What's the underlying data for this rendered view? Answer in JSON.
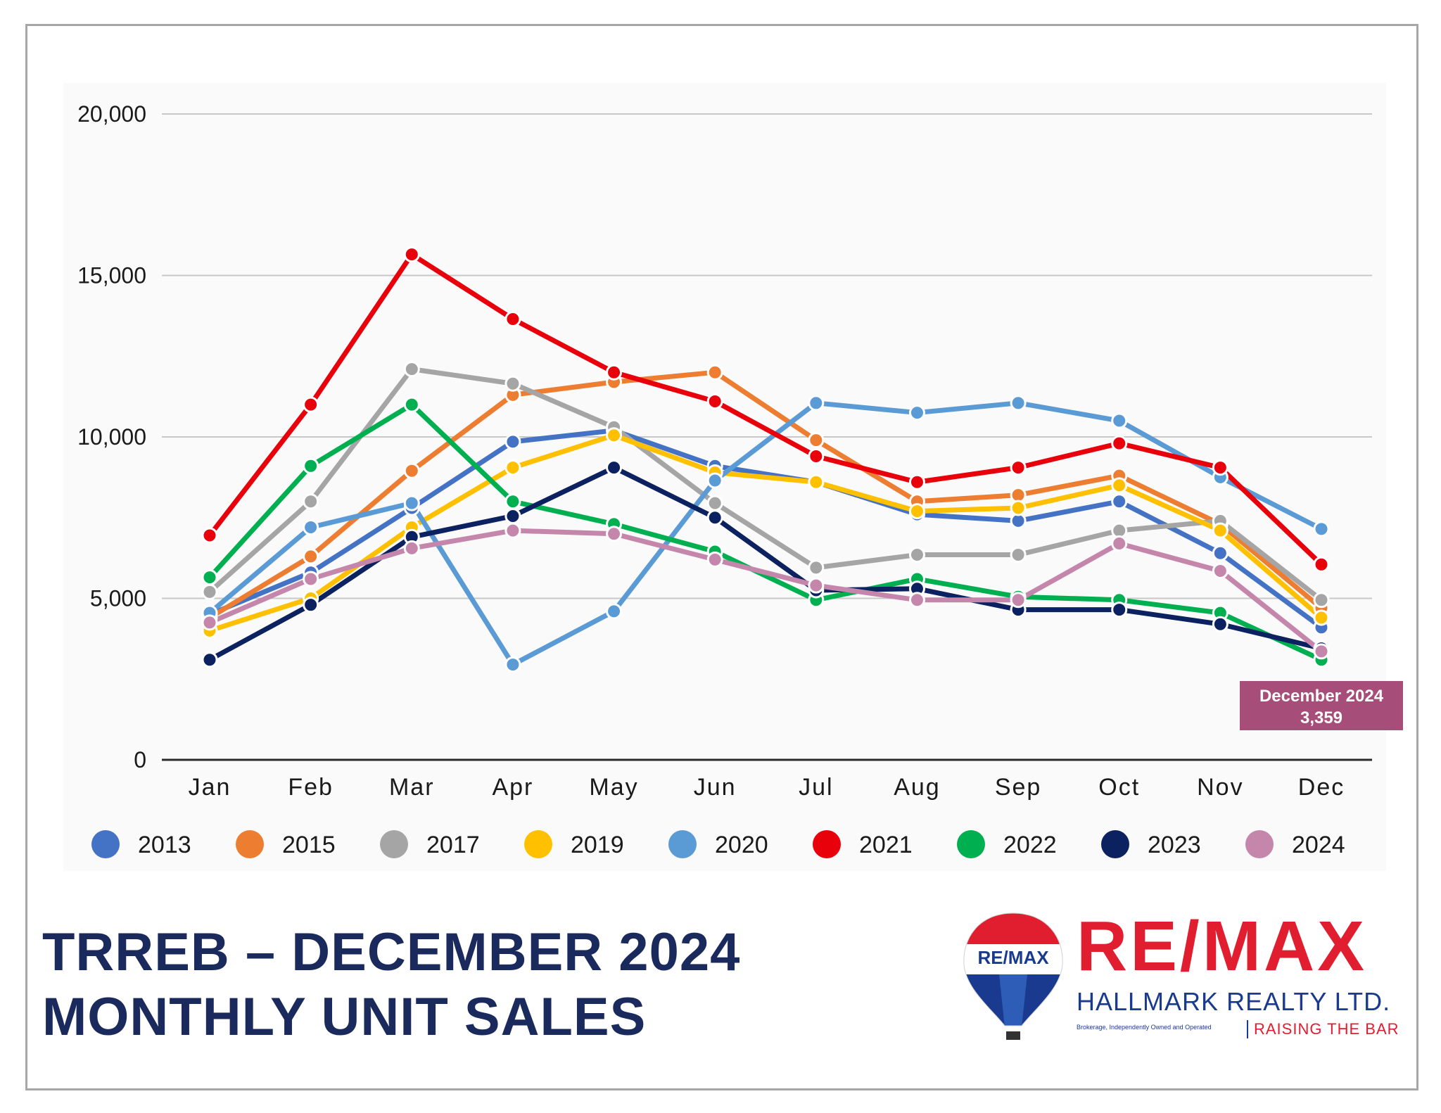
{
  "chart_data": {
    "type": "line",
    "categories": [
      "Jan",
      "Feb",
      "Mar",
      "Apr",
      "May",
      "Jun",
      "Jul",
      "Aug",
      "Sep",
      "Oct",
      "Nov",
      "Dec"
    ],
    "ylim": [
      0,
      20000
    ],
    "yticks": [
      0,
      5000,
      10000,
      15000,
      20000
    ],
    "ytick_labels": [
      "0",
      "5,000",
      "10,000",
      "15,000",
      "20,000"
    ],
    "grid": true,
    "legend_position": "bottom",
    "series": [
      {
        "name": "2013",
        "color": "#4472c4",
        "values": [
          4500,
          5800,
          7800,
          9850,
          10200,
          9100,
          8600,
          7600,
          7400,
          8000,
          6400,
          4100
        ]
      },
      {
        "name": "2015",
        "color": "#ed7d31",
        "values": [
          4400,
          6300,
          8950,
          11300,
          11700,
          12000,
          9900,
          8000,
          8200,
          8800,
          7300,
          4700
        ]
      },
      {
        "name": "2017",
        "color": "#a5a5a5",
        "values": [
          5200,
          8000,
          12100,
          11650,
          10300,
          7950,
          5950,
          6350,
          6350,
          7100,
          7400,
          4950
        ]
      },
      {
        "name": "2019",
        "color": "#ffc000",
        "values": [
          4000,
          5000,
          7200,
          9050,
          10050,
          8900,
          8600,
          7700,
          7800,
          8500,
          7100,
          4400
        ]
      },
      {
        "name": "2020",
        "color": "#5b9bd5",
        "values": [
          4550,
          7200,
          7950,
          2950,
          4600,
          8650,
          11050,
          10750,
          11050,
          10500,
          8750,
          7150
        ]
      },
      {
        "name": "2021",
        "color": "#e8000b",
        "values": [
          6950,
          11000,
          15650,
          13650,
          12000,
          11100,
          9400,
          8600,
          9050,
          9800,
          9050,
          6050
        ]
      },
      {
        "name": "2022",
        "color": "#00b050",
        "values": [
          5650,
          9100,
          11000,
          8000,
          7300,
          6450,
          4950,
          5600,
          5050,
          4950,
          4550,
          3100
        ]
      },
      {
        "name": "2023",
        "color": "#0b2160",
        "values": [
          3100,
          4800,
          6900,
          7550,
          9050,
          7500,
          5250,
          5300,
          4650,
          4650,
          4200,
          3450
        ]
      },
      {
        "name": "2024",
        "color": "#c586ac",
        "values": [
          4250,
          5600,
          6550,
          7100,
          7000,
          6200,
          5400,
          4950,
          4950,
          6700,
          5850,
          3359
        ]
      }
    ],
    "annotation": {
      "line1": "December 2024",
      "line2": "3,359",
      "bg_color": "#a64d79"
    }
  },
  "footer": {
    "title_line1": "TRREB – DECEMBER 2024",
    "title_line2": "MONTHLY UNIT SALES"
  },
  "logo": {
    "balloon_text": "RE/MAX",
    "brand": "RE/MAX",
    "office": "HALLMARK REALTY LTD.",
    "legal": "Brokerage, Independently Owned and Operated",
    "tagline": "RAISING THE BAR",
    "red": "#e01e2f",
    "blue": "#1a3a8f"
  }
}
